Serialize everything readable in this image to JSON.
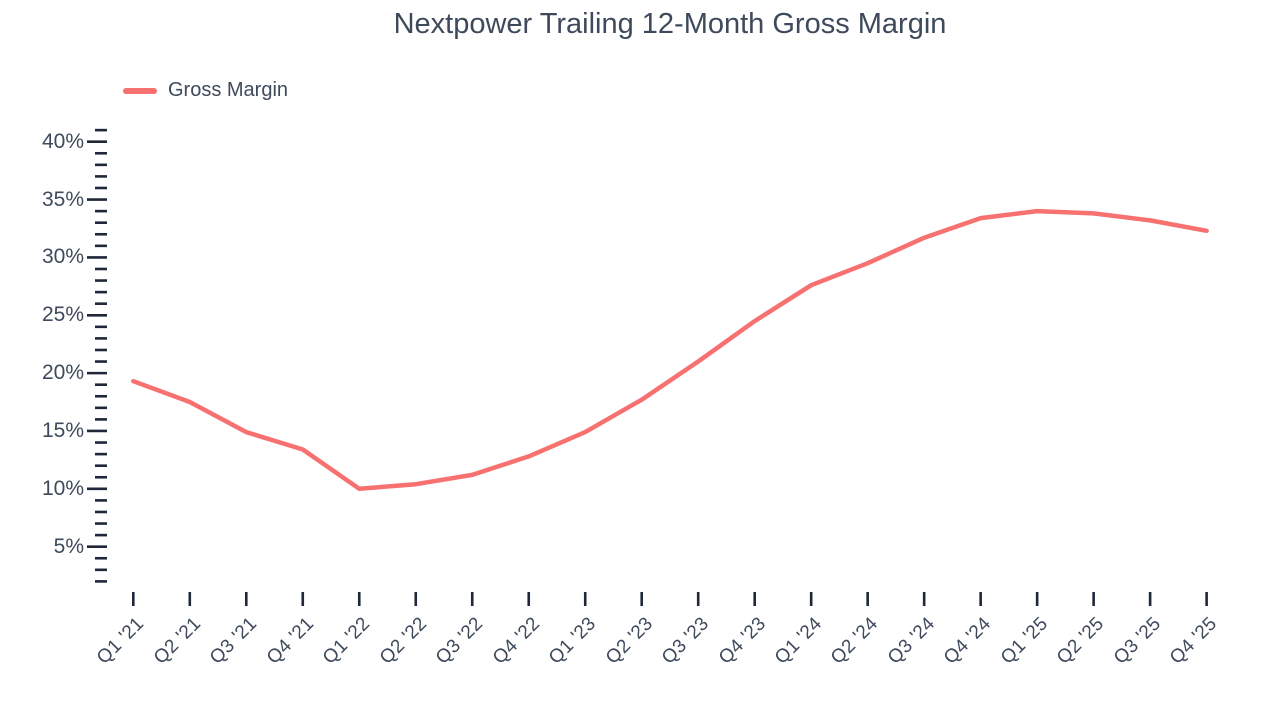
{
  "page": {
    "background_color": "#FFFFFF"
  },
  "chart_data": {
    "type": "line",
    "title": "Nextpower Trailing 12-Month Gross Margin",
    "xlabel": "",
    "ylabel": "",
    "categories": [
      "Q1 '21",
      "Q2 '21",
      "Q3 '21",
      "Q4 '21",
      "Q1 '22",
      "Q2 '22",
      "Q3 '22",
      "Q4 '22",
      "Q1 '23",
      "Q2 '23",
      "Q3 '23",
      "Q4 '23",
      "Q1 '24",
      "Q2 '24",
      "Q3 '24",
      "Q4 '24",
      "Q1 '25",
      "Q2 '25",
      "Q3 '25",
      "Q4 '25"
    ],
    "series": [
      {
        "name": "Gross Margin",
        "color": "#F87171",
        "values": [
          19.3,
          17.5,
          14.9,
          13.4,
          10.0,
          10.4,
          11.2,
          12.8,
          14.9,
          17.7,
          21.0,
          24.5,
          27.6,
          29.5,
          31.7,
          33.4,
          34.0,
          33.8,
          33.2,
          32.3
        ]
      }
    ],
    "y_ticks": [
      {
        "value": 40,
        "label": "40%"
      },
      {
        "value": 35,
        "label": "35%"
      },
      {
        "value": 30,
        "label": "30%"
      },
      {
        "value": 25,
        "label": "25%"
      },
      {
        "value": 20,
        "label": "20%"
      },
      {
        "value": 15,
        "label": "15%"
      },
      {
        "value": 10,
        "label": "10%"
      },
      {
        "value": 5,
        "label": "5%"
      }
    ],
    "y_minor_step": 1,
    "y_minor_range": [
      2,
      41
    ],
    "ylim": [
      2,
      42
    ],
    "grid": false,
    "legend_position": "top-left",
    "colors": {
      "line": "#F87171",
      "text": "#3E4A5C",
      "tick": "#1E2838"
    }
  }
}
